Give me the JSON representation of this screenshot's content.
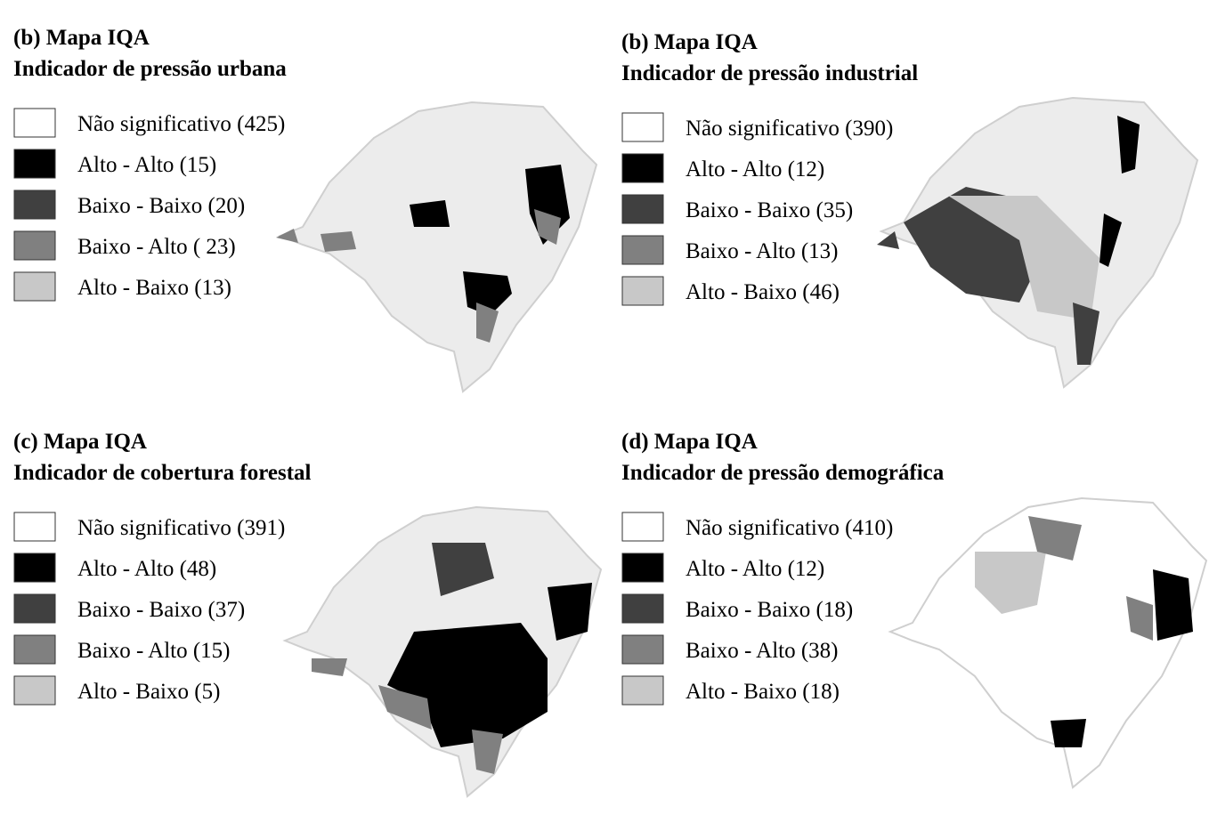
{
  "panels": [
    {
      "title": "(b) Mapa IQA",
      "subtitle": "Indicador de pressão urbana",
      "legend": [
        {
          "label": "Não significativo (425)",
          "color": "#ffffff"
        },
        {
          "label": "Alto - Alto (15)",
          "color": "#000000"
        },
        {
          "label": "Baixo - Baixo (20)",
          "color": "#404040"
        },
        {
          "label": "Baixo - Alto ( 23)",
          "color": "#808080"
        },
        {
          "label": "Alto - Baixo (13)",
          "color": "#c8c8c8"
        }
      ]
    },
    {
      "title": "(b) Mapa IQA",
      "subtitle": "Indicador de pressão industrial",
      "legend": [
        {
          "label": "Não significativo (390)",
          "color": "#ffffff"
        },
        {
          "label": "Alto - Alto (12)",
          "color": "#000000"
        },
        {
          "label": "Baixo - Baixo (35)",
          "color": "#404040"
        },
        {
          "label": "Baixo - Alto (13)",
          "color": "#808080"
        },
        {
          "label": "Alto - Baixo (46)",
          "color": "#c8c8c8"
        }
      ]
    },
    {
      "title": "(c) Mapa IQA",
      "subtitle": "Indicador de cobertura forestal",
      "legend": [
        {
          "label": "Não significativo (391)",
          "color": "#ffffff"
        },
        {
          "label": "Alto - Alto (48)",
          "color": "#000000"
        },
        {
          "label": "Baixo - Baixo (37)",
          "color": "#404040"
        },
        {
          "label": "Baixo - Alto (15)",
          "color": "#808080"
        },
        {
          "label": "Alto - Baixo (5)",
          "color": "#c8c8c8"
        }
      ]
    },
    {
      "title": "(d) Mapa IQA",
      "subtitle": "Indicador de pressão demográfica",
      "legend": [
        {
          "label": "Não significativo (410)",
          "color": "#ffffff"
        },
        {
          "label": "Alto - Alto (12)",
          "color": "#000000"
        },
        {
          "label": "Baixo - Baixo (18)",
          "color": "#404040"
        },
        {
          "label": "Baixo - Alto (38)",
          "color": "#808080"
        },
        {
          "label": "Alto - Baixo (18)",
          "color": "#c8c8c8"
        }
      ]
    }
  ]
}
